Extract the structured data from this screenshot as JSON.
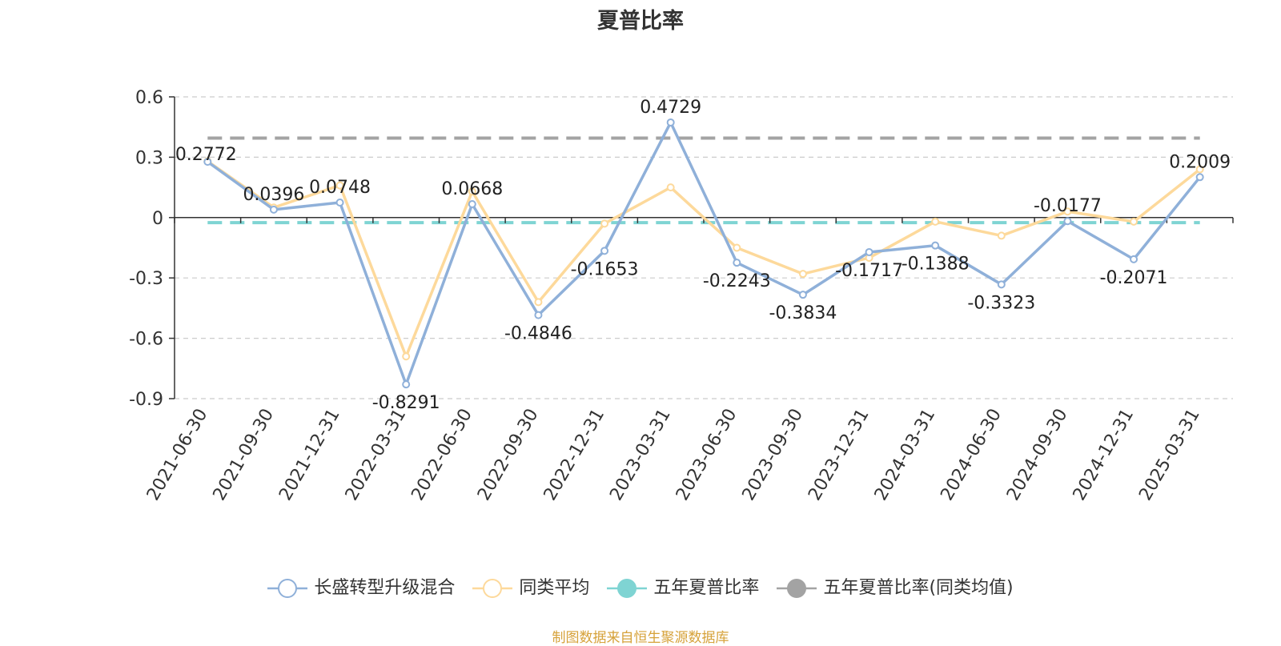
{
  "chart_data": {
    "type": "line",
    "title": "夏普比率",
    "x": [
      "2021-06-30",
      "2021-09-30",
      "2021-12-31",
      "2022-03-31",
      "2022-06-30",
      "2022-09-30",
      "2022-12-31",
      "2023-03-31",
      "2023-06-30",
      "2023-09-30",
      "2023-12-31",
      "2024-03-31",
      "2024-06-30",
      "2024-09-30",
      "2024-12-31",
      "2025-03-31"
    ],
    "y_ticks": [
      "0.6",
      "0.3",
      "0",
      "-0.3",
      "-0.6",
      "-0.9"
    ],
    "ylim": [
      -0.9,
      0.6
    ],
    "grid": true,
    "legend_position": "bottom",
    "series": [
      {
        "name": "长盛转型升级混合",
        "color": "#8fb0d9",
        "values": [
          0.2772,
          0.0396,
          0.0748,
          -0.8291,
          0.0668,
          -0.4846,
          -0.1653,
          0.4729,
          -0.2243,
          -0.3834,
          -0.1717,
          -0.1388,
          -0.3323,
          -0.0177,
          -0.2071,
          0.2009
        ],
        "labels": [
          "0.2772",
          "0.0396",
          "0.0748",
          "-0.8291",
          "0.0668",
          "-0.4846",
          "-0.1653",
          "0.4729",
          "-0.2243",
          "-0.3834",
          "-0.1717",
          "-0.1388",
          "-0.3323",
          "-0.0177",
          "-0.2071",
          "0.2009"
        ]
      },
      {
        "name": "同类平均",
        "color": "#fdd99b",
        "values": [
          0.28,
          0.05,
          0.16,
          -0.69,
          0.13,
          -0.42,
          -0.03,
          0.15,
          -0.15,
          -0.28,
          -0.2,
          -0.02,
          -0.09,
          0.03,
          -0.02,
          0.24
        ]
      },
      {
        "name": "五年夏普比率",
        "color": "#7fd4d3",
        "value": -0.025
      },
      {
        "name": "五年夏普比率(同类均值)",
        "color": "#a3a3a3",
        "value": 0.395
      }
    ]
  },
  "source_text": "制图数据来自恒生聚源数据库"
}
